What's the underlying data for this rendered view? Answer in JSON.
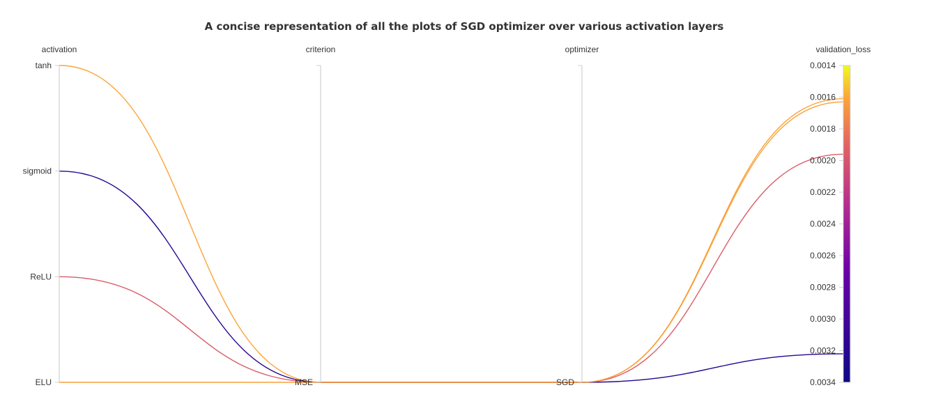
{
  "chart_data": {
    "type": "parallel_coordinates",
    "title": "A concise representation of all the plots of SGD optimizer over various activation layers",
    "dimensions": [
      {
        "name": "activation",
        "kind": "categorical",
        "categories": [
          "ELU",
          "ReLU",
          "sigmoid",
          "tanh"
        ]
      },
      {
        "name": "criterion",
        "kind": "categorical",
        "categories": [
          "MSE"
        ]
      },
      {
        "name": "optimizer",
        "kind": "categorical",
        "categories": [
          "SGD"
        ]
      },
      {
        "name": "validation_loss",
        "kind": "numeric",
        "range": [
          0.0014,
          0.0034
        ],
        "reversed": true,
        "ticks": [
          "0.0014",
          "0.0016",
          "0.0018",
          "0.0020",
          "0.0022",
          "0.0024",
          "0.0026",
          "0.0028",
          "0.0030",
          "0.0032",
          "0.0034"
        ]
      }
    ],
    "colorscale": {
      "min": 0.0014,
      "max": 0.0034,
      "stops": [
        {
          "value": 0.0014,
          "color": "#f0f921"
        },
        {
          "value": 0.0016,
          "color": "#fca636"
        },
        {
          "value": 0.0019,
          "color": "#e16462"
        },
        {
          "value": 0.0023,
          "color": "#b12a90"
        },
        {
          "value": 0.0027,
          "color": "#6a00a8"
        },
        {
          "value": 0.0034,
          "color": "#0d0887"
        }
      ]
    },
    "records": [
      {
        "activation": "tanh",
        "criterion": "MSE",
        "optimizer": "SGD",
        "validation_loss": 0.00161
      },
      {
        "activation": "sigmoid",
        "criterion": "MSE",
        "optimizer": "SGD",
        "validation_loss": 0.00322
      },
      {
        "activation": "ReLU",
        "criterion": "MSE",
        "optimizer": "SGD",
        "validation_loss": 0.00196
      },
      {
        "activation": "ELU",
        "criterion": "MSE",
        "optimizer": "SGD",
        "validation_loss": 0.00163
      }
    ]
  }
}
